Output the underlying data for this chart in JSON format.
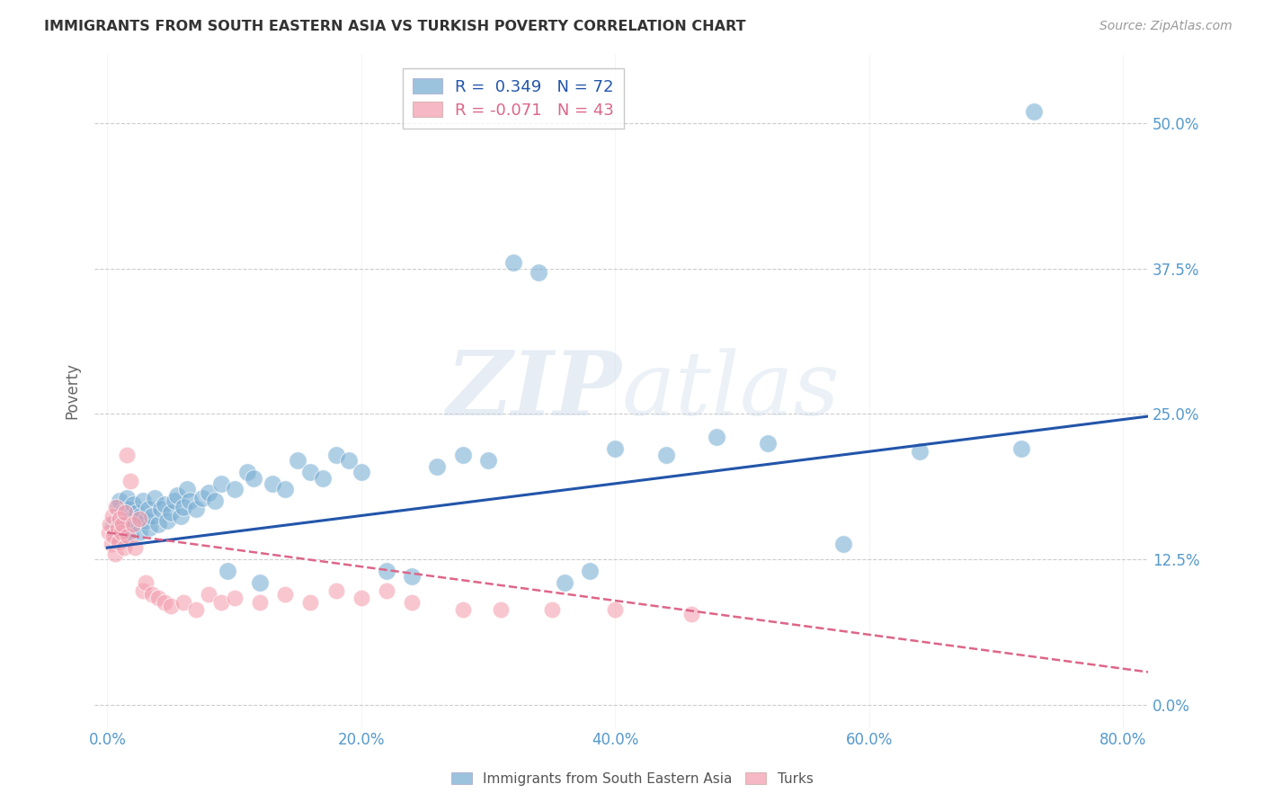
{
  "title": "IMMIGRANTS FROM SOUTH EASTERN ASIA VS TURKISH POVERTY CORRELATION CHART",
  "source": "Source: ZipAtlas.com",
  "ylabel": "Poverty",
  "xlim": [
    -0.01,
    0.82
  ],
  "ylim": [
    -0.02,
    0.56
  ],
  "blue_R": 0.349,
  "blue_N": 72,
  "pink_R": -0.071,
  "pink_N": 43,
  "watermark_zip": "ZIP",
  "watermark_atlas": "atlas",
  "background_color": "#ffffff",
  "blue_color": "#7bafd4",
  "pink_color": "#f4a0b0",
  "blue_line_color": "#2255aa",
  "pink_line_color": "#dd6688",
  "grid_color": "#cccccc",
  "title_color": "#333333",
  "axis_label_color": "#5599cc",
  "ytick_vals": [
    0.0,
    0.125,
    0.25,
    0.375,
    0.5
  ],
  "xtick_vals": [
    0.0,
    0.2,
    0.4,
    0.6,
    0.8
  ],
  "blue_line_x0": 0.0,
  "blue_line_y0": 0.135,
  "blue_line_x1": 0.82,
  "blue_line_y1": 0.248,
  "pink_line_x0": 0.0,
  "pink_line_y0": 0.148,
  "pink_line_x1": 0.82,
  "pink_line_y1": 0.028,
  "blue_scatter_x": [
    0.005,
    0.007,
    0.008,
    0.009,
    0.01,
    0.01,
    0.011,
    0.012,
    0.013,
    0.014,
    0.015,
    0.016,
    0.017,
    0.018,
    0.019,
    0.02,
    0.022,
    0.023,
    0.025,
    0.026,
    0.028,
    0.03,
    0.032,
    0.033,
    0.035,
    0.037,
    0.04,
    0.042,
    0.045,
    0.047,
    0.05,
    0.053,
    0.055,
    0.058,
    0.06,
    0.063,
    0.065,
    0.07,
    0.075,
    0.08,
    0.085,
    0.09,
    0.095,
    0.1,
    0.11,
    0.115,
    0.12,
    0.13,
    0.14,
    0.15,
    0.16,
    0.17,
    0.18,
    0.19,
    0.2,
    0.22,
    0.24,
    0.26,
    0.28,
    0.3,
    0.32,
    0.34,
    0.36,
    0.38,
    0.4,
    0.44,
    0.48,
    0.52,
    0.58,
    0.64,
    0.72,
    0.73
  ],
  "blue_scatter_y": [
    0.155,
    0.148,
    0.17,
    0.145,
    0.16,
    0.175,
    0.152,
    0.165,
    0.158,
    0.142,
    0.178,
    0.155,
    0.168,
    0.145,
    0.16,
    0.172,
    0.155,
    0.165,
    0.148,
    0.162,
    0.175,
    0.158,
    0.168,
    0.152,
    0.162,
    0.178,
    0.155,
    0.168,
    0.172,
    0.158,
    0.165,
    0.175,
    0.18,
    0.162,
    0.17,
    0.185,
    0.175,
    0.168,
    0.178,
    0.182,
    0.175,
    0.19,
    0.115,
    0.185,
    0.2,
    0.195,
    0.105,
    0.19,
    0.185,
    0.21,
    0.2,
    0.195,
    0.215,
    0.21,
    0.2,
    0.115,
    0.11,
    0.205,
    0.215,
    0.21,
    0.38,
    0.372,
    0.105,
    0.115,
    0.22,
    0.215,
    0.23,
    0.225,
    0.138,
    0.218,
    0.22,
    0.51
  ],
  "pink_scatter_x": [
    0.001,
    0.002,
    0.003,
    0.004,
    0.005,
    0.006,
    0.007,
    0.008,
    0.009,
    0.01,
    0.011,
    0.012,
    0.013,
    0.014,
    0.015,
    0.016,
    0.018,
    0.02,
    0.022,
    0.025,
    0.028,
    0.03,
    0.035,
    0.04,
    0.045,
    0.05,
    0.06,
    0.07,
    0.08,
    0.09,
    0.1,
    0.12,
    0.14,
    0.16,
    0.18,
    0.2,
    0.22,
    0.24,
    0.28,
    0.31,
    0.35,
    0.4,
    0.46
  ],
  "pink_scatter_y": [
    0.148,
    0.155,
    0.138,
    0.162,
    0.145,
    0.13,
    0.17,
    0.152,
    0.14,
    0.16,
    0.148,
    0.155,
    0.135,
    0.165,
    0.215,
    0.145,
    0.192,
    0.155,
    0.135,
    0.16,
    0.098,
    0.105,
    0.095,
    0.092,
    0.088,
    0.085,
    0.088,
    0.082,
    0.095,
    0.088,
    0.092,
    0.088,
    0.095,
    0.088,
    0.098,
    0.092,
    0.098,
    0.088,
    0.082,
    0.082,
    0.082,
    0.082,
    0.078
  ]
}
